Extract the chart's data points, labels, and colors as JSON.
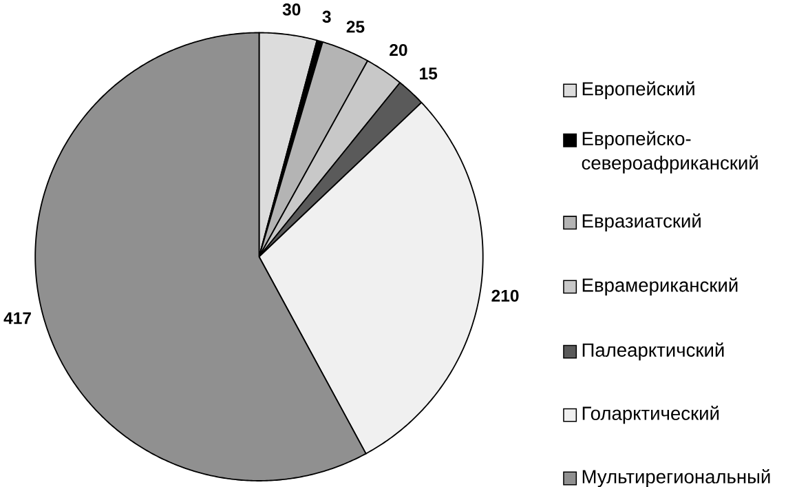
{
  "chart_data": {
    "type": "pie",
    "categories": [
      "Европейский",
      "Европейско-североафриканский",
      "Евразиатский",
      "Еврамериканский",
      "Палеарктичский",
      "Голарктический",
      "Мультирегиональный"
    ],
    "values": [
      30,
      3,
      25,
      20,
      15,
      210,
      417
    ],
    "colors": [
      "#dcdcdc",
      "#000000",
      "#b4b4b4",
      "#c8c8c8",
      "#5a5a5a",
      "#f0f0f0",
      "#909090"
    ],
    "data_labels": true,
    "legend": "right"
  }
}
